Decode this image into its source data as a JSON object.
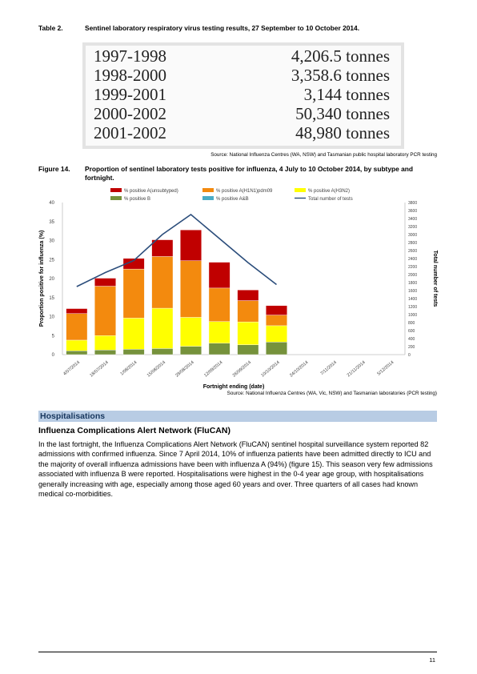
{
  "table2": {
    "number": "Table 2.",
    "title": "Sentinel laboratory respiratory virus testing results, 27 September to 10 October 2014.",
    "rows": [
      {
        "period": "1997-1998",
        "value": "4,206.5 tonnes"
      },
      {
        "period": "1998-2000",
        "value": "3,358.6 tonnes"
      },
      {
        "period": "1999-2001",
        "value": "3,144 tonnes"
      },
      {
        "period": "2000-2002",
        "value": "50,340 tonnes"
      },
      {
        "period": "2001-2002",
        "value": "48,980 tonnes"
      }
    ],
    "source": "Source: National Influenza Centres (WA, NSW) and Tasmanian public hospital laboratory PCR testing"
  },
  "figure14": {
    "number": "Figure 14.",
    "title": "Proportion of sentinel laboratory tests positive for influenza, 4 July to 10 October 2014, by subtype and fortnight.",
    "source": "Source: National Influenza Centres (WA, Vic, NSW) and Tasmanian laboratories (PCR testing)"
  },
  "chart_data": {
    "type": "bar",
    "stacked": true,
    "categories": [
      "4/07/2014",
      "18/07/2014",
      "1/08/2014",
      "15/08/2014",
      "29/08/2014",
      "12/09/2014",
      "26/09/2014",
      "10/10/2014",
      "24/10/2014",
      "7/11/2014",
      "21/11/2014",
      "5/12/2014"
    ],
    "series": [
      {
        "name": "% positive B",
        "color": "#76923c",
        "values": [
          1,
          1.2,
          1.4,
          1.6,
          2.2,
          3,
          2.6,
          3.3,
          null,
          null,
          null,
          null
        ]
      },
      {
        "name": "% positive A&B",
        "color": "#4bacc6",
        "values": [
          0,
          0,
          0,
          0,
          0,
          0,
          0,
          0,
          null,
          null,
          null,
          null
        ]
      },
      {
        "name": "% positive A(H3N2)",
        "color": "#ffff00",
        "values": [
          2.8,
          3.8,
          8.2,
          10.6,
          7.6,
          5.7,
          6,
          4.3,
          null,
          null,
          null,
          null
        ]
      },
      {
        "name": "% positive A(H1N1)pdm09",
        "color": "#f38a0e",
        "values": [
          7,
          13,
          12.9,
          13.6,
          14.9,
          8.8,
          5.6,
          2.8,
          null,
          null,
          null,
          null
        ]
      },
      {
        "name": "% positive A(unsubtyped)",
        "color": "#c00000",
        "values": [
          1.3,
          2.1,
          2.8,
          4.4,
          8.1,
          6.8,
          2.8,
          2.5,
          null,
          null,
          null,
          null
        ]
      }
    ],
    "line": {
      "name": "Total number of tests",
      "color": "#2b4d7b",
      "axis": "right",
      "values": [
        1700,
        2050,
        2350,
        3000,
        3500,
        2900,
        2300,
        1750,
        null,
        null,
        null,
        null
      ]
    },
    "xlabel": "Fortnight ending (date)",
    "ylabel": "Proportion positive for influenza (%)",
    "y2label": "Total number of tests",
    "ylim": [
      0,
      40
    ],
    "y2lim": [
      0,
      3800
    ],
    "yticks": [
      0,
      5,
      10,
      15,
      20,
      25,
      30,
      35,
      40
    ],
    "y2ticks": [
      0,
      200,
      400,
      600,
      800,
      1000,
      1200,
      1400,
      1600,
      1800,
      2000,
      2200,
      2400,
      2600,
      2800,
      3000,
      3200,
      3400,
      3600,
      3800
    ],
    "legend_position": "top"
  },
  "section": {
    "heading": "Hospitalisations",
    "subheading": "Influenza Complications Alert Network (FluCAN)",
    "paragraph": "In the last fortnight, the Influenza Complications Alert Network (FluCAN) sentinel hospital surveillance system reported 82 admissions with confirmed influenza. Since 7 April 2014, 10% of influenza patients have been admitted directly to ICU and the majority of overall influenza admissions have been with influenza A (94%) (figure 15). This season very few admissions associated with influenza B were reported. Hospitalisations were highest in the 0-4 year age group, with hospitalisations generally increasing with age, especially among those aged 60 years and over. Three quarters of all cases had known medical co-morbidities."
  },
  "footer": {
    "page_number": "11"
  }
}
